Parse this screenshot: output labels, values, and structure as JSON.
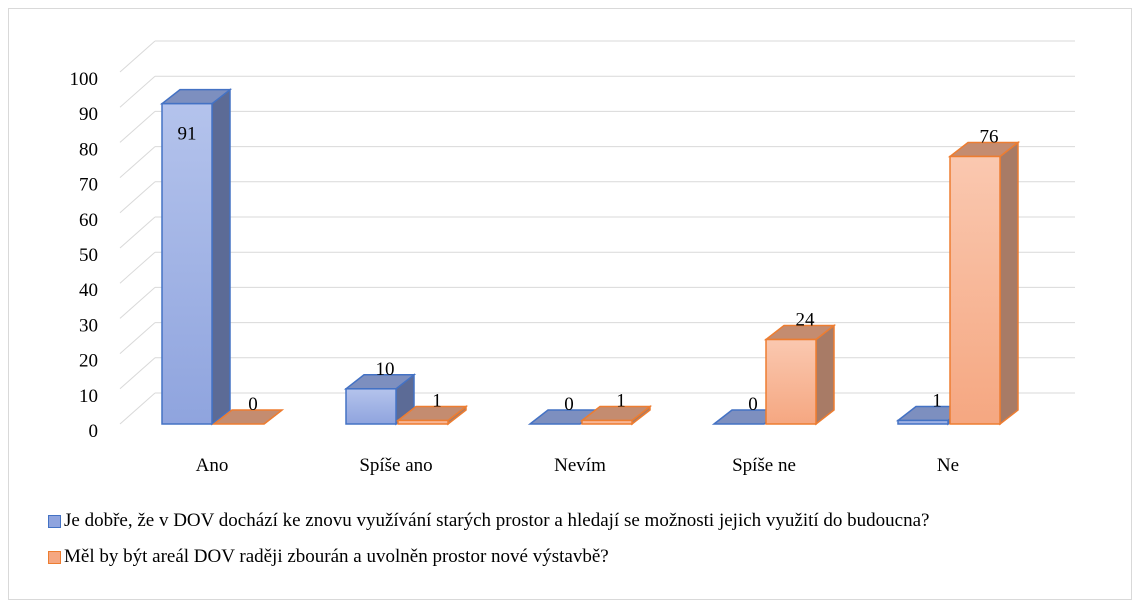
{
  "chart_data": {
    "type": "bar3d",
    "categories": [
      "Ano",
      "Spíše ano",
      "Nevím",
      "Spíše ne",
      "Ne"
    ],
    "series": [
      {
        "name": "Je dobře, že v DOV dochází ke znovu využívání starých prostor a hledají se možnosti jejich využití do budoucna?",
        "color": "#4472c4",
        "values": [
          91,
          10,
          0,
          0,
          1
        ]
      },
      {
        "name": "Měl by být areál DOV raději zbourán a uvolněn prostor nové výstavbě?",
        "color": "#ed7d31",
        "values": [
          0,
          1,
          1,
          24,
          76
        ]
      }
    ],
    "ylim": [
      0,
      100
    ],
    "yticks": [
      0,
      10,
      20,
      30,
      40,
      50,
      60,
      70,
      80,
      90,
      100
    ],
    "grid": true,
    "legend": "bottom"
  }
}
